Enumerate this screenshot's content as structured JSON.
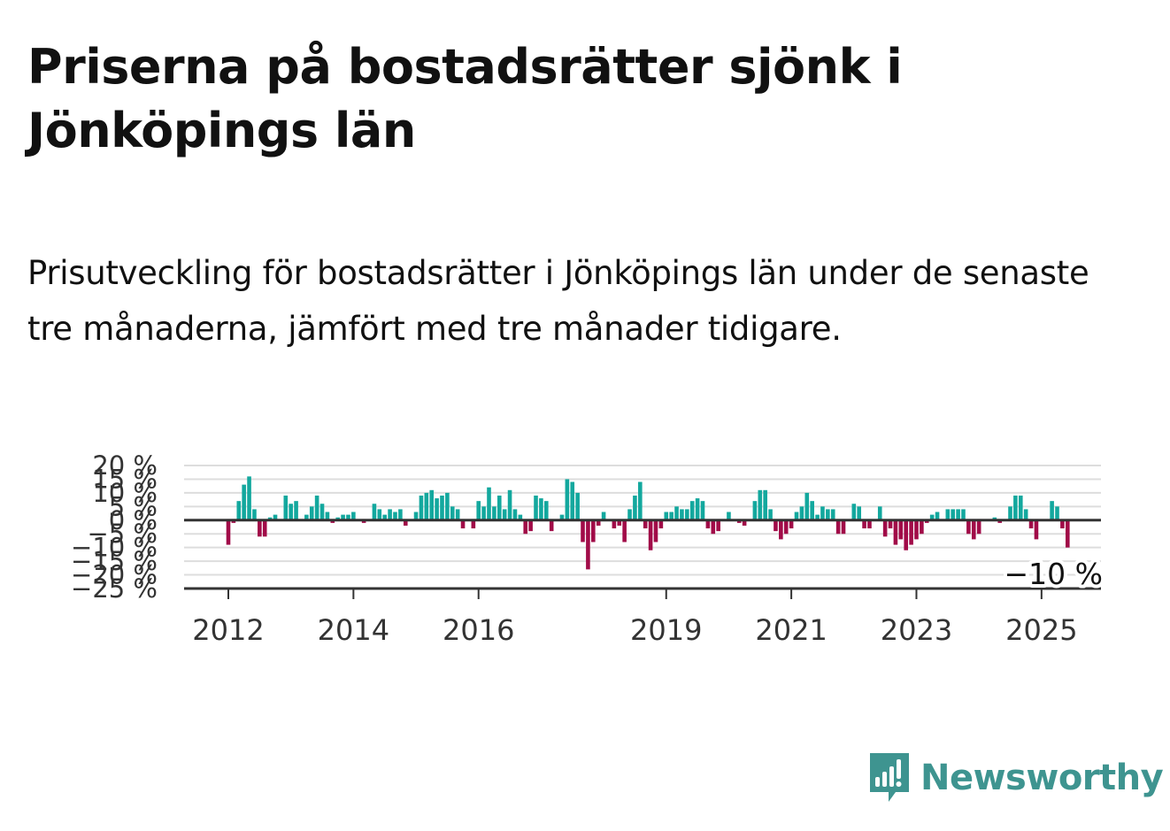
{
  "title": "Priserna på bostadsrätter sjönk i Jönköpings län",
  "subtitle": "Prisutveckling för bostadsrätter i Jönköpings län under de senaste tre månaderna, jämfört med tre månader tidigare.",
  "brand": {
    "name": "Newsworthy",
    "icon": "newsworthy-bar-chart-icon",
    "color": "#3e9490"
  },
  "colors": {
    "positive": "#13a89e",
    "negative": "#a10b48",
    "grid": "#dddddd",
    "axis": "#333333"
  },
  "chart_data": {
    "type": "bar",
    "title": "",
    "xlabel": "",
    "ylabel": "",
    "ylim": [
      -25,
      20
    ],
    "y_ticks": [
      20,
      15,
      10,
      5,
      0,
      -5,
      -10,
      -15,
      -20,
      -25
    ],
    "y_tick_labels": [
      "20 %",
      "15 %",
      "10 %",
      "5 %",
      "0 %",
      "−5 %",
      "−10 %",
      "−15 %",
      "−20 %",
      "−25 %"
    ],
    "x_tick_labels": [
      "2012",
      "2014",
      "2016",
      "2019",
      "2021",
      "2023",
      "2025"
    ],
    "grid": true,
    "start": "2012-01",
    "frequency": "monthly",
    "last_value_label": "−10 %",
    "values": [
      -9,
      -1,
      7,
      13,
      16,
      4,
      -6,
      -6,
      1,
      2,
      0,
      9,
      6,
      7,
      0,
      2,
      5,
      9,
      6,
      3,
      -1,
      1,
      2,
      2,
      3,
      0,
      -1,
      0,
      6,
      4,
      2,
      4,
      3,
      4,
      -2,
      0,
      3,
      9,
      10,
      11,
      8,
      9,
      10,
      5,
      4,
      -3,
      0,
      -3,
      7,
      5,
      12,
      5,
      9,
      4,
      11,
      4,
      2,
      -5,
      -4,
      9,
      8,
      7,
      -4,
      0,
      2,
      15,
      14,
      10,
      -8,
      -18,
      -8,
      -2,
      3,
      0,
      -3,
      -2,
      -8,
      4,
      9,
      14,
      -3,
      -11,
      -8,
      -3,
      3,
      3,
      5,
      4,
      4,
      7,
      8,
      7,
      -3,
      -5,
      -4,
      0,
      3,
      0,
      -1,
      -2,
      0,
      7,
      11,
      11,
      4,
      -4,
      -7,
      -5,
      -3,
      3,
      5,
      10,
      7,
      2,
      5,
      4,
      4,
      -5,
      -5,
      0,
      6,
      5,
      -3,
      -3,
      0,
      5,
      -6,
      -3,
      -9,
      -7,
      -11,
      -9,
      -7,
      -5,
      -1,
      2,
      3,
      0,
      4,
      4,
      4,
      4,
      -5,
      -7,
      -5,
      0,
      0,
      1,
      -1,
      0,
      5,
      9,
      9,
      4,
      -3,
      -7,
      0,
      0,
      7,
      5,
      -3,
      -10
    ]
  }
}
